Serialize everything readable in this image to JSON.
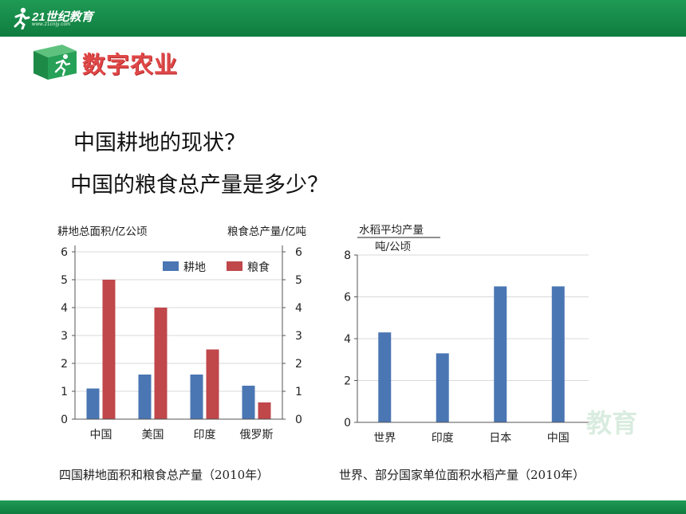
{
  "header": {
    "logo_text": "21世纪教育",
    "logo_url": "www.21cnjy.com"
  },
  "section": {
    "title": "数字农业"
  },
  "questions": {
    "q1": "中国耕地的现状？",
    "q2": "中国的粮食总产量是多少？"
  },
  "watermark": "教育",
  "colors": {
    "bar_blue": "#4a76b3",
    "bar_red": "#c0474a",
    "header_green": "#17894a"
  },
  "chart_data": [
    {
      "type": "bar",
      "categories": [
        "中国",
        "美国",
        "印度",
        "俄罗斯"
      ],
      "series": [
        {
          "name": "耕地",
          "values": [
            1.1,
            1.6,
            1.6,
            1.2
          ]
        },
        {
          "name": "粮食",
          "values": [
            5.0,
            4.0,
            2.5,
            0.6
          ]
        }
      ],
      "ylabel_left": "耕地总面积/亿公顷",
      "ylabel_right": "粮食总产量/亿吨",
      "ylim": [
        0,
        6
      ],
      "yticks": [
        "0",
        "1",
        "2",
        "3",
        "4",
        "5",
        "6"
      ],
      "legend_placement": "top-right",
      "caption": "四国耕地面积和粮食总产量（2010年）"
    },
    {
      "type": "bar",
      "categories": [
        "世界",
        "印度",
        "日本",
        "中国"
      ],
      "values": [
        4.3,
        3.3,
        6.5,
        6.5
      ],
      "ylabel_line1": "水稻平均产量",
      "ylabel_line2": "吨/公顷",
      "ylim": [
        0,
        8
      ],
      "yticks": [
        "0",
        "2",
        "4",
        "6",
        "8"
      ],
      "caption": "世界、部分国家单位面积水稻产量（2010年）"
    }
  ]
}
